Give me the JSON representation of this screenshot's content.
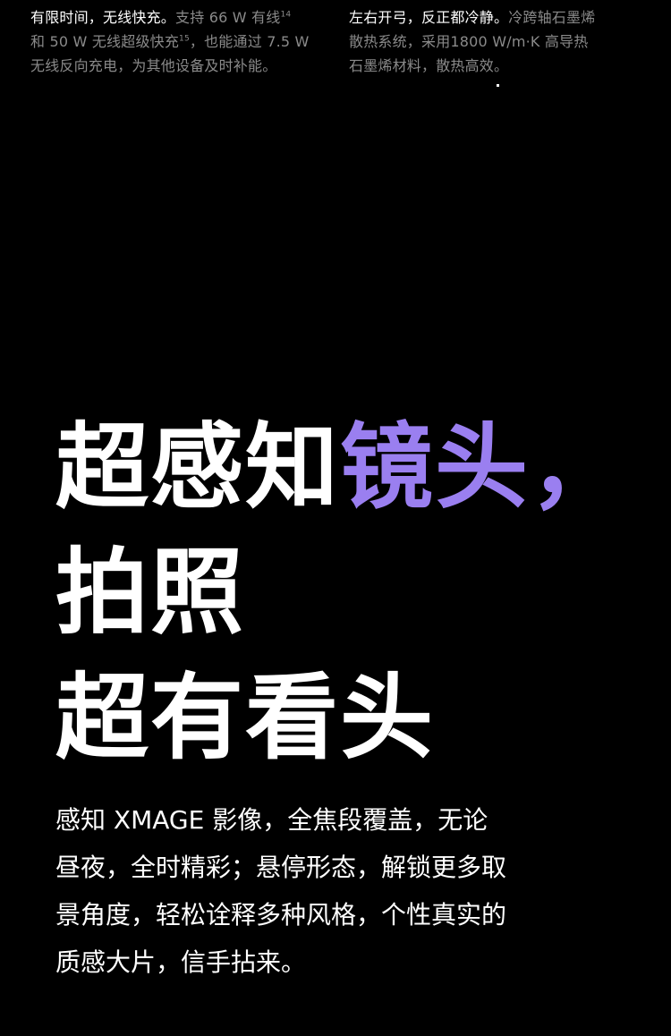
{
  "top_left": {
    "line1_bright": "有限时间，无线快充。",
    "line1_dim": "支持 66 W 有线",
    "sup14": "14",
    "line2_dim": "和 50 W 无线超级快充",
    "sup15": "15",
    "line2_dim_b": "，也能通过 7.5 W",
    "line3_dim": "无线反向充电，为其他设备及时补能。"
  },
  "top_right": {
    "line1_bright": "左右开弓，反正都冷静。",
    "line1_dim": "冷跨轴石墨烯",
    "line2_dim": "散热系统，采用1800 W/m·K 高导热",
    "line3_dim": "石墨烯材料，散热高效。"
  },
  "headline": {
    "line1_white": "超感知",
    "line1_accent": "镜头，",
    "line2": "拍照",
    "line3": "超有看头"
  },
  "body": {
    "line1": "感知 XMAGE 影像，全焦段覆盖，无论",
    "line2": "昼夜，全时精彩；悬停形态，解锁更多取",
    "line3": "景角度，轻松诠释多种风格，个性真实的",
    "line4": "质感大片，信手拈来。"
  },
  "colors": {
    "background": "#000000",
    "accent": "#9a7ff0",
    "dim_text": "#8a8a8a",
    "text": "#ffffff"
  }
}
